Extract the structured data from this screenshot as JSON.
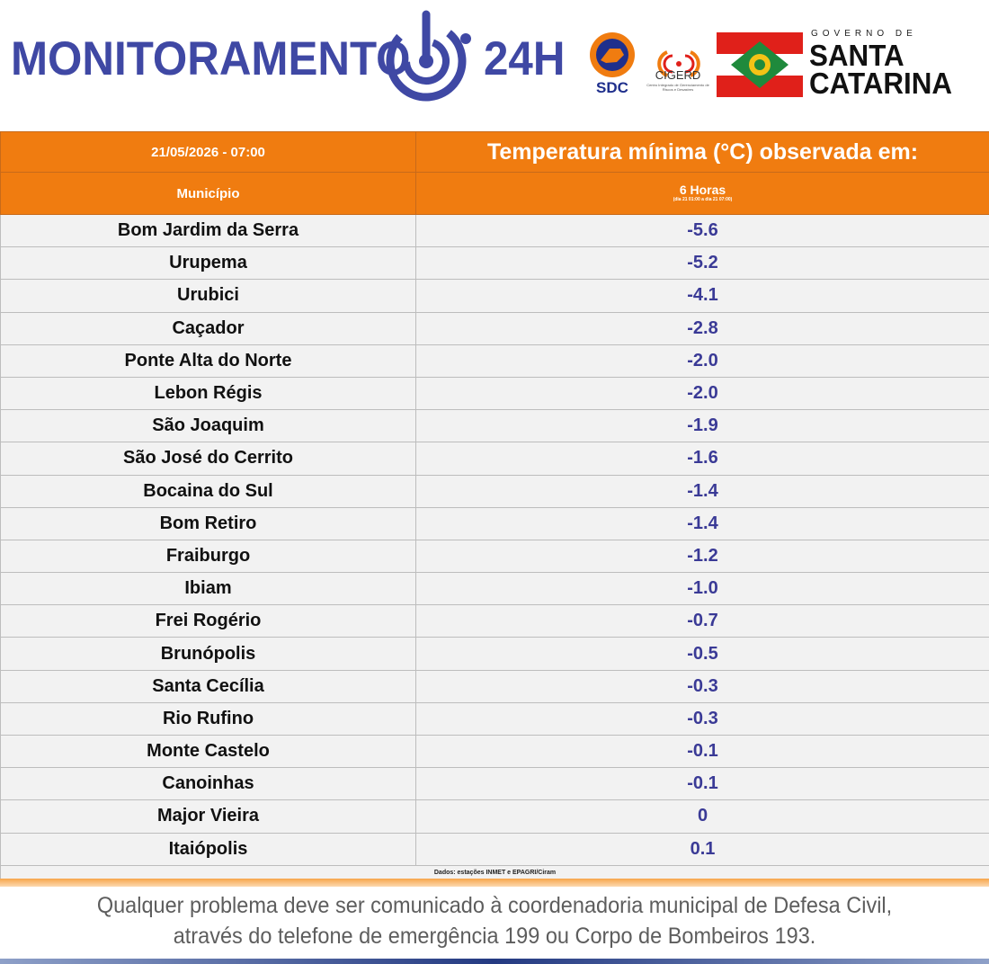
{
  "header": {
    "brand_left": "MONITORAMENTO",
    "brand_right": "24H",
    "sdc_label": "SDC",
    "cigerd_label": "CIGERD",
    "cigerd_sub": "Centro Integrado de Gerenciamento de Riscos e Desastres",
    "gov_top": "GOVERNO DE",
    "gov_line1": "SANTA",
    "gov_line2": "CATARINA",
    "colors": {
      "brand": "#3f48a4",
      "orange": "#f07c10",
      "flag_red": "#e0201a",
      "flag_green": "#1f8a3c"
    }
  },
  "table": {
    "datetime": "21/05/2026 - 07:00",
    "title": "Temperatura mínima (°C) observada em:",
    "col_municipio": "Município",
    "col_period": "6 Horas",
    "col_period_sub": "(dia 21 01:00 a dia 21 07:00)",
    "rows": [
      {
        "city": "Bom Jardim da Serra",
        "value": "-5.6"
      },
      {
        "city": "Urupema",
        "value": "-5.2"
      },
      {
        "city": "Urubici",
        "value": "-4.1"
      },
      {
        "city": "Caçador",
        "value": "-2.8"
      },
      {
        "city": "Ponte Alta do Norte",
        "value": "-2.0"
      },
      {
        "city": "Lebon Régis",
        "value": "-2.0"
      },
      {
        "city": "São Joaquim",
        "value": "-1.9"
      },
      {
        "city": "São José do Cerrito",
        "value": "-1.6"
      },
      {
        "city": "Bocaina do Sul",
        "value": "-1.4"
      },
      {
        "city": "Bom Retiro",
        "value": "-1.4"
      },
      {
        "city": "Fraiburgo",
        "value": "-1.2"
      },
      {
        "city": "Ibiam",
        "value": "-1.0"
      },
      {
        "city": "Frei Rogério",
        "value": "-0.7"
      },
      {
        "city": "Brunópolis",
        "value": "-0.5"
      },
      {
        "city": "Santa Cecília",
        "value": "-0.3"
      },
      {
        "city": "Rio Rufino",
        "value": "-0.3"
      },
      {
        "city": "Monte Castelo",
        "value": "-0.1"
      },
      {
        "city": "Canoinhas",
        "value": "-0.1"
      },
      {
        "city": "Major Vieira",
        "value": "0"
      },
      {
        "city": "Itaiópolis",
        "value": "0.1"
      }
    ],
    "source": "Dados: estações INMET e EPAGRI/Ciram"
  },
  "footer": {
    "line1": "Qualquer problema deve ser comunicado à coordenadoria municipal de Defesa Civil,",
    "line2": "através do telefone de emergência 199 ou Corpo de Bombeiros 193."
  }
}
